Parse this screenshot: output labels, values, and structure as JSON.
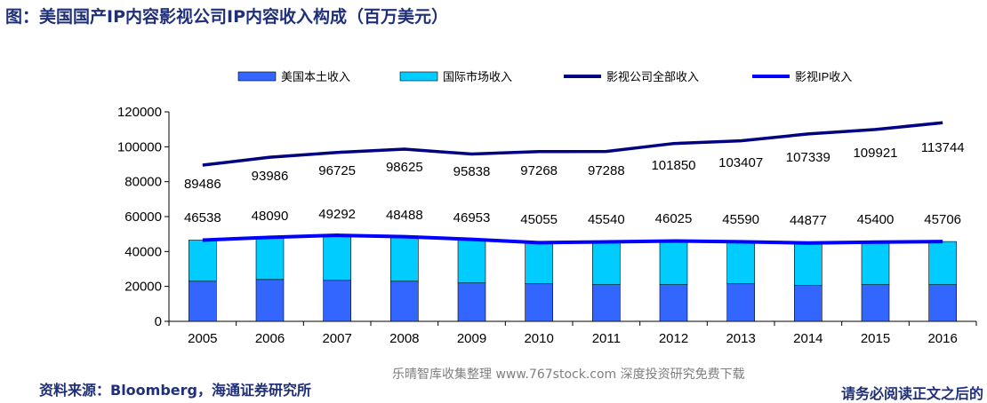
{
  "header": {
    "title": "图：美国国产IP内容影视公司IP内容收入构成（百万美元）"
  },
  "footer": {
    "source": "资料来源：Bloomberg，海通证券研究所",
    "watermark": "乐晴智库收集整理 www.767stock.com 深度投资研究免费下载",
    "notice": "请务必阅读正文之后的"
  },
  "chart_data": {
    "type": "bar",
    "categories": [
      "2005",
      "2006",
      "2007",
      "2008",
      "2009",
      "2010",
      "2011",
      "2012",
      "2013",
      "2014",
      "2015",
      "2016"
    ],
    "series": [
      {
        "name": "美国本土收入",
        "kind": "stacked-bar",
        "color": "#3366ff",
        "values": [
          23000,
          24000,
          23500,
          23000,
          22000,
          21500,
          21000,
          21000,
          21500,
          20500,
          21000,
          21000
        ]
      },
      {
        "name": "国际市场收入",
        "kind": "stacked-bar",
        "color": "#00ccff",
        "values": [
          23538,
          24090,
          25792,
          25488,
          24953,
          23555,
          24540,
          25025,
          24090,
          24377,
          24400,
          24706
        ]
      },
      {
        "name": "影视公司全部收入",
        "kind": "line",
        "color": "#000080",
        "values": [
          89486,
          93986,
          96725,
          98625,
          95838,
          97268,
          97288,
          101850,
          103407,
          107339,
          109921,
          113744
        ]
      },
      {
        "name": "影视IP收入",
        "kind": "line",
        "color": "#0000ff",
        "values": [
          46538,
          48090,
          49292,
          48488,
          46953,
          45055,
          45540,
          46025,
          45590,
          44877,
          45400,
          45706
        ]
      }
    ],
    "ylim": [
      0,
      120000
    ],
    "yticks": [
      "0",
      "20000",
      "40000",
      "60000",
      "80000",
      "100000",
      "120000"
    ],
    "data_labels": {
      "total": [
        "89486",
        "93986",
        "96725",
        "98625",
        "95838",
        "97268",
        "97288",
        "101850",
        "103407",
        "107339",
        "109921",
        "113744"
      ],
      "ip": [
        "46538",
        "48090",
        "49292",
        "48488",
        "46953",
        "45055",
        "45540",
        "46025",
        "45590",
        "44877",
        "45400",
        "45706"
      ]
    },
    "legend_position": "top",
    "grid": false
  }
}
